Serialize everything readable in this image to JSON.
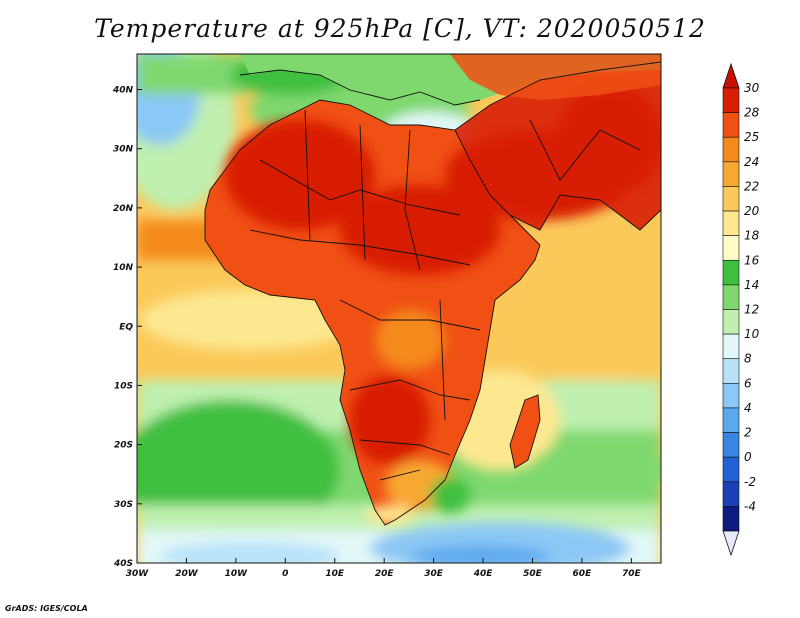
{
  "title": "Temperature at 925hPa [C], VT: 2020050512",
  "credit": "GrADS: IGES/COLA",
  "map": {
    "region": "Africa",
    "lon_range": [
      -30,
      76
    ],
    "lat_range": [
      -40,
      46
    ],
    "x_ticks": [
      {
        "lon": -30,
        "label": "30W"
      },
      {
        "lon": -20,
        "label": "20W"
      },
      {
        "lon": -10,
        "label": "10W"
      },
      {
        "lon": 0,
        "label": "0"
      },
      {
        "lon": 10,
        "label": "10E"
      },
      {
        "lon": 20,
        "label": "20E"
      },
      {
        "lon": 30,
        "label": "30E"
      },
      {
        "lon": 40,
        "label": "40E"
      },
      {
        "lon": 50,
        "label": "50E"
      },
      {
        "lon": 60,
        "label": "60E"
      },
      {
        "lon": 70,
        "label": "70E"
      }
    ],
    "y_ticks": [
      {
        "lat": 40,
        "label": "40N"
      },
      {
        "lat": 30,
        "label": "30N"
      },
      {
        "lat": 20,
        "label": "20N"
      },
      {
        "lat": 10,
        "label": "10N"
      },
      {
        "lat": 0,
        "label": "EQ"
      },
      {
        "lat": -10,
        "label": "10S"
      },
      {
        "lat": -20,
        "label": "20S"
      },
      {
        "lat": -30,
        "label": "30S"
      },
      {
        "lat": -40,
        "label": "40S"
      }
    ]
  },
  "colorbar": {
    "levels": [
      {
        "value": "30",
        "color": "#d81e05"
      },
      {
        "value": "28",
        "color": "#f05014"
      },
      {
        "value": "25",
        "color": "#f58a1c"
      },
      {
        "value": "24",
        "color": "#f7a832"
      },
      {
        "value": "22",
        "color": "#fbc95a"
      },
      {
        "value": "20",
        "color": "#fde890"
      },
      {
        "value": "18",
        "color": "#fdfcc8"
      },
      {
        "value": "16",
        "color": "#3fbf3f"
      },
      {
        "value": "14",
        "color": "#7fd86e"
      },
      {
        "value": "12",
        "color": "#bff0b0"
      },
      {
        "value": "10",
        "color": "#e2f8f8"
      },
      {
        "value": "8",
        "color": "#b8e2fa"
      },
      {
        "value": "6",
        "color": "#8cc8f5"
      },
      {
        "value": "4",
        "color": "#5ca8ee"
      },
      {
        "value": "2",
        "color": "#3a85e4"
      },
      {
        "value": "0",
        "color": "#2262d6"
      },
      {
        "value": "-2",
        "color": "#1a3fb8"
      },
      {
        "value": "-4",
        "color": "#0d1a80"
      }
    ],
    "over_color": "#c81004",
    "under_color": "#e8e8ff"
  }
}
